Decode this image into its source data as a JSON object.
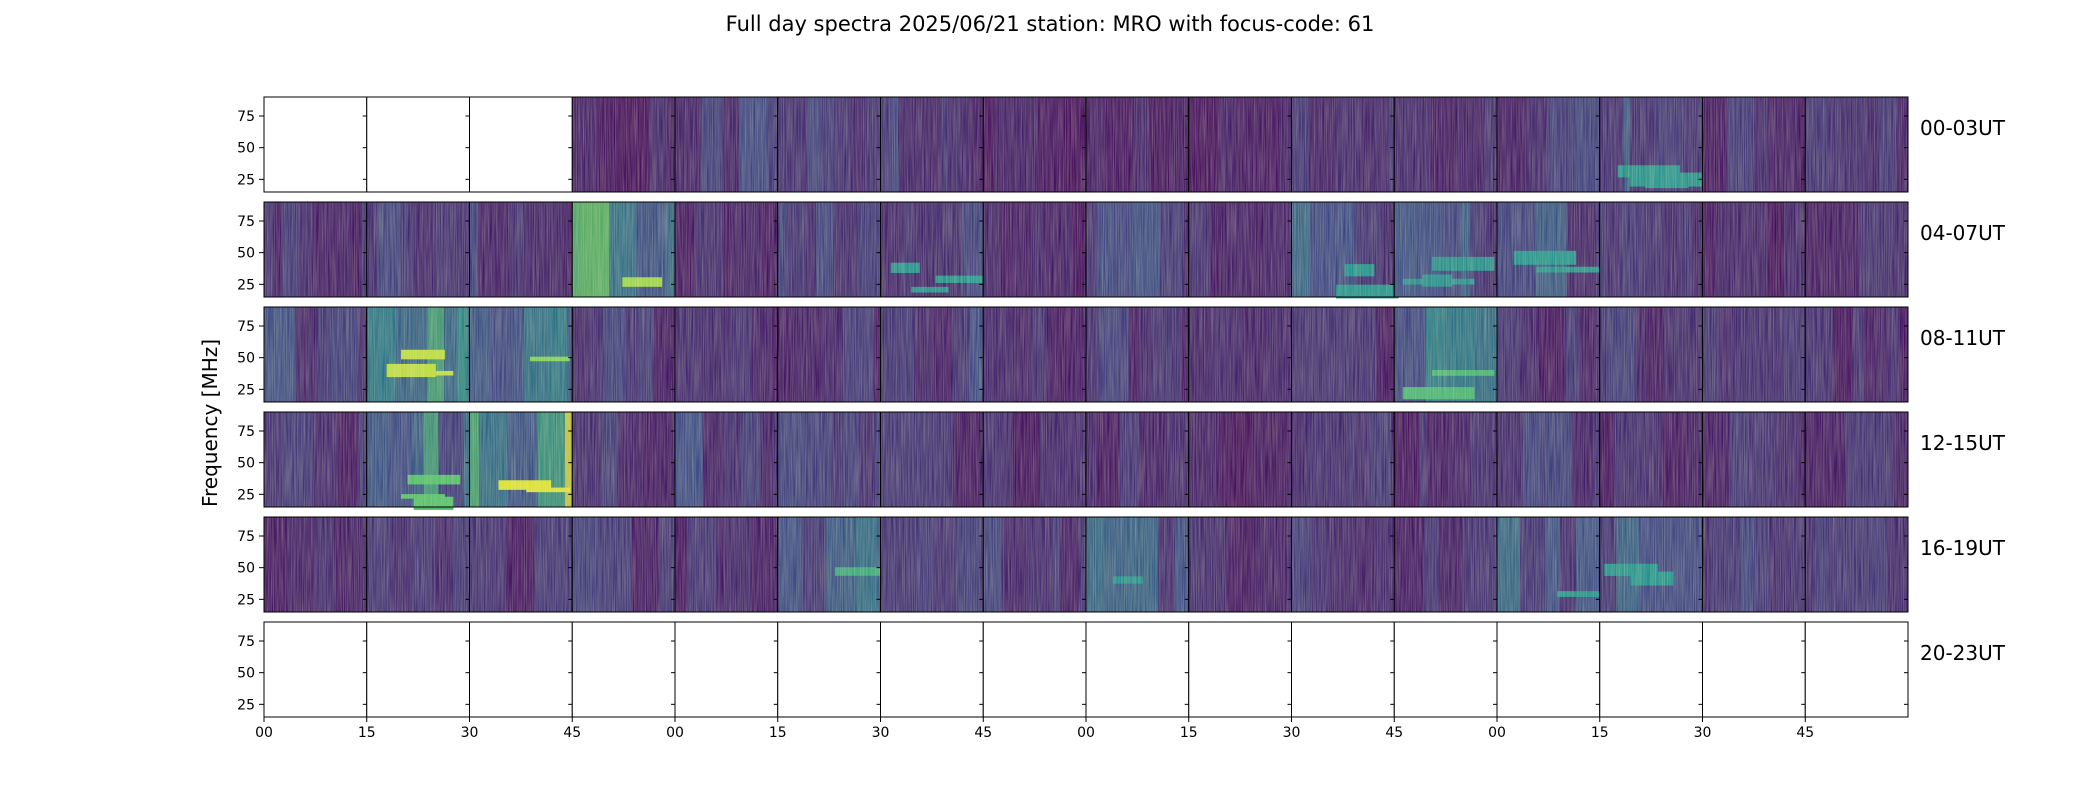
{
  "chart_data": {
    "type": "heatmap",
    "title": "Full day spectra 2025/06/21 station: MRO with focus-code: 61",
    "ylabel": "Frequency [MHz]",
    "xlabel": "",
    "y_ticks": [
      "25",
      "50",
      "75"
    ],
    "y_tick_values": [
      25,
      50,
      75
    ],
    "ylim": [
      15,
      90
    ],
    "x_ticks": [
      "00",
      "15",
      "30",
      "45",
      "00",
      "15",
      "30",
      "45",
      "00",
      "15",
      "30",
      "45",
      "00",
      "15",
      "30",
      "45"
    ],
    "colormap": "viridis",
    "panels_per_row": 16,
    "minutes_per_panel": 15,
    "rows": [
      {
        "label": "00-03UT",
        "data_panels": [
          0,
          0,
          0,
          1,
          1,
          1,
          1,
          1,
          1,
          1,
          1,
          1,
          1,
          1,
          1,
          1
        ],
        "intensity": [
          0,
          0,
          0,
          0.1,
          0.2,
          0.18,
          0.22,
          0.08,
          0.1,
          0.1,
          0.25,
          0.12,
          0.18,
          0.3,
          0.15,
          0.14
        ]
      },
      {
        "label": "04-07UT",
        "data_panels": [
          1,
          1,
          1,
          1,
          1,
          1,
          1,
          1,
          1,
          1,
          1,
          1,
          1,
          1,
          1,
          1
        ],
        "intensity": [
          0.15,
          0.18,
          0.2,
          0.65,
          0.12,
          0.25,
          0.3,
          0.1,
          0.22,
          0.14,
          0.3,
          0.28,
          0.3,
          0.14,
          0.1,
          0.14
        ]
      },
      {
        "label": "08-11UT",
        "data_panels": [
          1,
          1,
          1,
          1,
          1,
          1,
          1,
          1,
          1,
          1,
          1,
          1,
          1,
          1,
          1,
          1
        ],
        "intensity": [
          0.25,
          0.7,
          0.6,
          0.18,
          0.12,
          0.15,
          0.2,
          0.12,
          0.2,
          0.1,
          0.14,
          0.45,
          0.14,
          0.16,
          0.14,
          0.14
        ]
      },
      {
        "label": "12-15UT",
        "data_panels": [
          1,
          1,
          1,
          1,
          1,
          1,
          1,
          1,
          1,
          1,
          1,
          1,
          1,
          1,
          1,
          1
        ],
        "intensity": [
          0.15,
          0.5,
          0.75,
          0.16,
          0.25,
          0.18,
          0.15,
          0.14,
          0.14,
          0.08,
          0.14,
          0.14,
          0.18,
          0.14,
          0.14,
          0.14
        ]
      },
      {
        "label": "16-19UT",
        "data_panels": [
          1,
          1,
          1,
          1,
          1,
          1,
          1,
          1,
          1,
          1,
          1,
          1,
          1,
          1,
          1,
          1
        ],
        "intensity": [
          0.18,
          0.15,
          0.14,
          0.2,
          0.14,
          0.4,
          0.16,
          0.2,
          0.3,
          0.14,
          0.16,
          0.14,
          0.3,
          0.3,
          0.2,
          0.18
        ]
      },
      {
        "label": "20-23UT",
        "data_panels": [
          0,
          0,
          0,
          0,
          0,
          0,
          0,
          0,
          0,
          0,
          0,
          0,
          0,
          0,
          0,
          0
        ],
        "intensity": [
          0,
          0,
          0,
          0,
          0,
          0,
          0,
          0,
          0,
          0,
          0,
          0,
          0,
          0,
          0,
          0
        ]
      }
    ],
    "grid": false,
    "legend": "none"
  }
}
